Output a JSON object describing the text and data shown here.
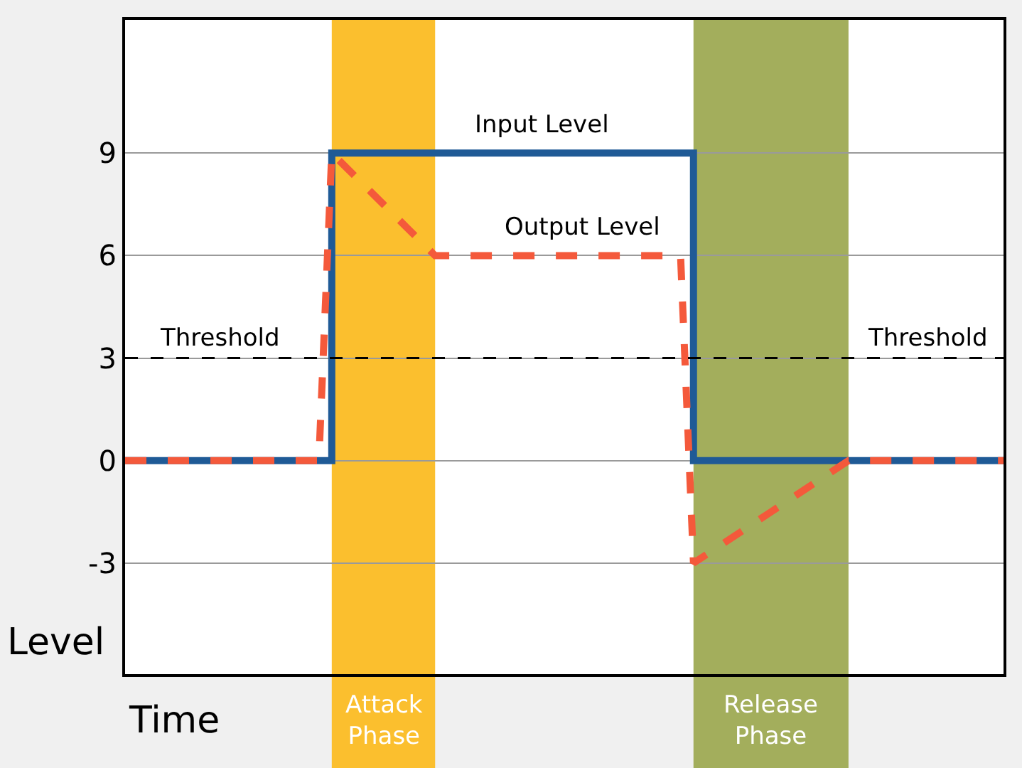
{
  "chart_data": {
    "type": "line",
    "xlabel": "Time",
    "ylabel": "Level",
    "categories": [
      null,
      null,
      null,
      null,
      null,
      null,
      null,
      null,
      null,
      null,
      null,
      null,
      null,
      null,
      null,
      null,
      null,
      null,
      null,
      null,
      null,
      null,
      null,
      null,
      null,
      null,
      null,
      null,
      null,
      null,
      null,
      null,
      null,
      null,
      null,
      null,
      null,
      null,
      null,
      null,
      null,
      null,
      null,
      null,
      null,
      null,
      null,
      null,
      null,
      null,
      null,
      null,
      null,
      null,
      null,
      null,
      null,
      null,
      null,
      null,
      null,
      null,
      null,
      null,
      null,
      null,
      null,
      null,
      null
    ],
    "ylim": [
      -6.25,
      12.9
    ],
    "yticks": [
      -3,
      0,
      3,
      6,
      9
    ],
    "grid": "y",
    "tick_labels": "y",
    "series": [
      {
        "name": "Input Level",
        "type": "step",
        "color": "#1f5a96",
        "line_style": "solid",
        "values": [
          0,
          0,
          0,
          0,
          0,
          0,
          0,
          0,
          0,
          0,
          0,
          0,
          0,
          0,
          0,
          0,
          9,
          9,
          9,
          9,
          9,
          9,
          9,
          9,
          9,
          9,
          9,
          9,
          9,
          9,
          9,
          9,
          9,
          9,
          9,
          9,
          9,
          9,
          9,
          9,
          9,
          9,
          9,
          9,
          0,
          0,
          0,
          0,
          0,
          0,
          0,
          0,
          0,
          0,
          0,
          0,
          0,
          0,
          0,
          0,
          0,
          0,
          0,
          0,
          0,
          0,
          0,
          0,
          0
        ]
      },
      {
        "name": "Output Level",
        "color": "#f4593b",
        "line_style": "dashed",
        "values": [
          0,
          0,
          0,
          0,
          0,
          0,
          0,
          0,
          0,
          0,
          0,
          0,
          0,
          0,
          0,
          0,
          9,
          8.625,
          8.25,
          7.875,
          7.5,
          7.125,
          6.75,
          6.375,
          6,
          6,
          6,
          6,
          6,
          6,
          6,
          6,
          6,
          6,
          6,
          6,
          6,
          6,
          6,
          6,
          6,
          6,
          6,
          6,
          -3,
          -2.75,
          -2.5,
          -2.25,
          -2,
          -1.75,
          -1.5,
          -1.25,
          -1,
          -0.75,
          -0.5,
          -0.25,
          0,
          0,
          0,
          0,
          0,
          0,
          0,
          0,
          0,
          0,
          0,
          0,
          0
        ]
      }
    ],
    "ref_lines": [
      {
        "axis": "y",
        "value": 3,
        "color": "#000000",
        "line_style": "dashed"
      }
    ],
    "annotations": [
      {
        "text": "Threshold",
        "y": 3
      },
      {
        "text": "Threshold",
        "y": 3
      },
      "Attack Phase",
      "Release Phase"
    ]
  }
}
